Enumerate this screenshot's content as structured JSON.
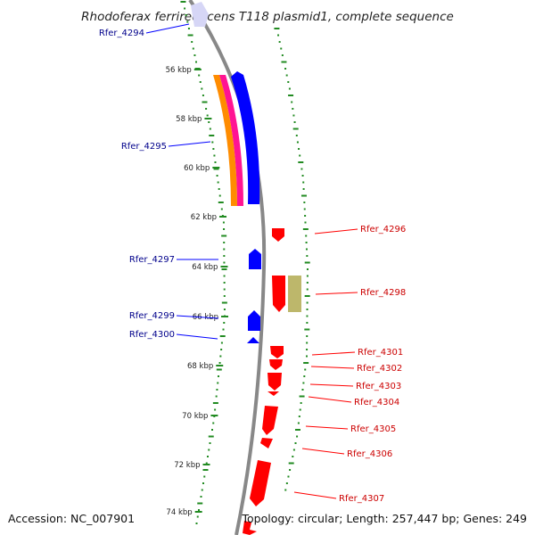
{
  "title": "Rhodoferax ferrireducens T118 plasmid1, complete sequence",
  "footer": {
    "accession": "Accession: NC_007901",
    "summary": "Topology: circular; Length: 257,447 bp; Genes: 249"
  },
  "colors": {
    "forward": "#0000ff",
    "reverse": "#ff0000",
    "backbone": "#888888",
    "ticks": "#228b22",
    "orange": "#ff8c00",
    "magenta": "#ff1493",
    "khaki": "#bdb76b"
  },
  "ticks": [
    {
      "label": "56 kbp"
    },
    {
      "label": "58 kbp"
    },
    {
      "label": "60 kbp"
    },
    {
      "label": "62 kbp"
    },
    {
      "label": "64 kbp"
    },
    {
      "label": "66 kbp"
    },
    {
      "label": "68 kbp"
    },
    {
      "label": "70 kbp"
    },
    {
      "label": "72 kbp"
    },
    {
      "label": "74 kbp"
    }
  ],
  "genes": [
    {
      "name": "Rfer_4294",
      "strand": "forward"
    },
    {
      "name": "Rfer_4295",
      "strand": "forward"
    },
    {
      "name": "Rfer_4296",
      "strand": "reverse"
    },
    {
      "name": "Rfer_4297",
      "strand": "forward"
    },
    {
      "name": "Rfer_4298",
      "strand": "reverse"
    },
    {
      "name": "Rfer_4299",
      "strand": "forward"
    },
    {
      "name": "Rfer_4300",
      "strand": "forward"
    },
    {
      "name": "Rfer_4301",
      "strand": "reverse"
    },
    {
      "name": "Rfer_4302",
      "strand": "reverse"
    },
    {
      "name": "Rfer_4303",
      "strand": "reverse"
    },
    {
      "name": "Rfer_4304",
      "strand": "reverse"
    },
    {
      "name": "Rfer_4305",
      "strand": "reverse"
    },
    {
      "name": "Rfer_4306",
      "strand": "reverse"
    },
    {
      "name": "Rfer_4307",
      "strand": "reverse"
    }
  ]
}
